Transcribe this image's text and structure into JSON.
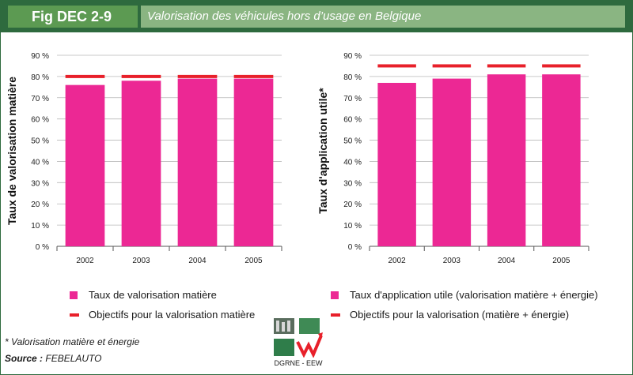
{
  "header": {
    "figure_id": "Fig DEC 2-9",
    "title": "Valorisation des véhicules hors d’usage en Belgique"
  },
  "colors": {
    "bar": "#ec2894",
    "target": "#e8202a",
    "header_dark": "#2e6a3e",
    "header_mid": "#5c9a52",
    "header_light": "#8ab582"
  },
  "chart_data": [
    {
      "type": "bar",
      "ylabel": "Taux de valorisation matière",
      "categories": [
        "2002",
        "2003",
        "2004",
        "2005"
      ],
      "yticks": [
        "0 %",
        "10 %",
        "20 %",
        "30 %",
        "40 %",
        "50 %",
        "60 %",
        "70 %",
        "80 %",
        "90 %"
      ],
      "ylim": [
        0,
        90
      ],
      "series": [
        {
          "name": "Taux de valorisation matière",
          "values": [
            76,
            78,
            79,
            79
          ]
        },
        {
          "name": "Objectifs pour la valorisation matière",
          "values": [
            80,
            80,
            80,
            80
          ]
        }
      ]
    },
    {
      "type": "bar",
      "ylabel": "Taux d'application utile*",
      "categories": [
        "2002",
        "2003",
        "2004",
        "2005"
      ],
      "yticks": [
        "0 %",
        "10 %",
        "20 %",
        "30 %",
        "40 %",
        "50 %",
        "60 %",
        "70 %",
        "80 %",
        "90 %"
      ],
      "ylim": [
        0,
        90
      ],
      "series": [
        {
          "name": "Taux d'application utile (valorisation matière + énergie)",
          "values": [
            77,
            79,
            81,
            81
          ]
        },
        {
          "name": "Objectifs pour la valorisation (matière + énergie)",
          "values": [
            85,
            85,
            85,
            85
          ]
        }
      ]
    }
  ],
  "legend": {
    "left_bar": "Taux de valorisation matière",
    "left_target": "Objectifs pour la valorisation matière",
    "right_bar": "Taux d'application utile (valorisation matière + énergie)",
    "right_target": "Objectifs pour la valorisation (matière + énergie)"
  },
  "footer": {
    "note": "* Valorisation matière et énergie",
    "source_label": "Source :",
    "source_value": "FEBELAUTO",
    "logo_text": "DGRNE - EEW"
  }
}
